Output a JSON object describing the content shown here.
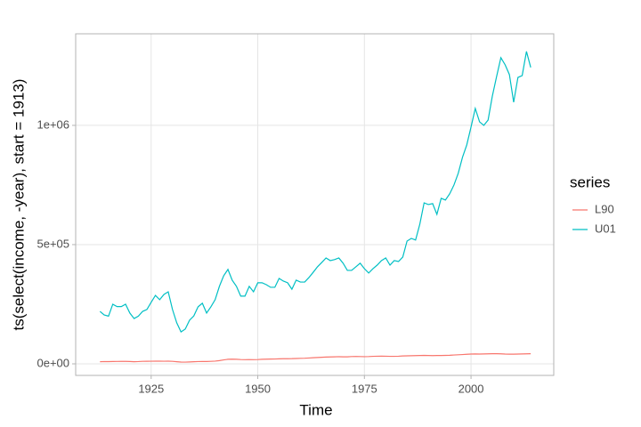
{
  "chart_data": {
    "type": "line",
    "x_label": "Time",
    "y_label": "ts(select(income, -year), start = 1913)",
    "legend_title": "series",
    "legend_position": "right",
    "grid": true,
    "x": [
      1913,
      1914,
      1915,
      1916,
      1917,
      1918,
      1919,
      1920,
      1921,
      1922,
      1923,
      1924,
      1925,
      1926,
      1927,
      1928,
      1929,
      1930,
      1931,
      1932,
      1933,
      1934,
      1935,
      1936,
      1937,
      1938,
      1939,
      1940,
      1941,
      1942,
      1943,
      1944,
      1945,
      1946,
      1947,
      1948,
      1949,
      1950,
      1951,
      1952,
      1953,
      1954,
      1955,
      1956,
      1957,
      1958,
      1959,
      1960,
      1961,
      1962,
      1963,
      1964,
      1965,
      1966,
      1967,
      1968,
      1969,
      1970,
      1971,
      1972,
      1973,
      1974,
      1975,
      1976,
      1977,
      1978,
      1979,
      1980,
      1981,
      1982,
      1983,
      1984,
      1985,
      1986,
      1987,
      1988,
      1989,
      1990,
      1991,
      1992,
      1993,
      1994,
      1995,
      1996,
      1997,
      1998,
      1999,
      2000,
      2001,
      2002,
      2003,
      2004,
      2005,
      2006,
      2007,
      2008,
      2009,
      2010,
      2011,
      2012,
      2013,
      2014
    ],
    "series": [
      {
        "name": "L90",
        "color": "#f8766d",
        "values": [
          9000,
          9500,
          9200,
          9800,
          10000,
          10500,
          10300,
          9800,
          9000,
          9500,
          10500,
          10800,
          11000,
          11200,
          11500,
          11000,
          11200,
          10500,
          9000,
          7500,
          7200,
          8000,
          8800,
          9500,
          10000,
          9800,
          10500,
          11500,
          13500,
          16500,
          19000,
          19500,
          19000,
          18000,
          17500,
          17800,
          17500,
          18000,
          19000,
          19500,
          20000,
          20200,
          21000,
          21500,
          21500,
          21800,
          22500,
          23000,
          23500,
          24500,
          25500,
          26500,
          27500,
          28500,
          29000,
          29500,
          30000,
          29500,
          29500,
          30500,
          31000,
          30500,
          30000,
          30500,
          31500,
          32000,
          32500,
          32000,
          31500,
          31500,
          32000,
          33000,
          33500,
          34000,
          34500,
          35000,
          35500,
          35000,
          34500,
          35000,
          35000,
          35500,
          36000,
          37000,
          38000,
          39000,
          40000,
          41000,
          41500,
          41000,
          41500,
          42000,
          42500,
          42500,
          42000,
          41000,
          40500,
          40500,
          41000,
          41500,
          42000,
          42500
        ]
      },
      {
        "name": "U01",
        "color": "#00bfc4",
        "values": [
          220000,
          205000,
          200000,
          250000,
          240000,
          240000,
          250000,
          213000,
          190000,
          200000,
          220000,
          228000,
          258000,
          287000,
          269000,
          291000,
          302000,
          228000,
          172000,
          134000,
          146000,
          183000,
          201000,
          239000,
          254000,
          213000,
          239000,
          269000,
          325000,
          369000,
          396000,
          351000,
          325000,
          284000,
          284000,
          325000,
          302000,
          340000,
          340000,
          332000,
          321000,
          321000,
          358000,
          347000,
          340000,
          313000,
          351000,
          343000,
          343000,
          362000,
          384000,
          407000,
          425000,
          444000,
          433000,
          437000,
          444000,
          422000,
          392000,
          392000,
          407000,
          422000,
          399000,
          381000,
          399000,
          414000,
          433000,
          444000,
          414000,
          433000,
          429000,
          448000,
          515000,
          526000,
          519000,
          586000,
          675000,
          668000,
          672000,
          627000,
          694000,
          687000,
          713000,
          750000,
          799000,
          866000,
          918000,
          993000,
          1071000,
          1015000,
          1000000,
          1022000,
          1123000,
          1205000,
          1284000,
          1254000,
          1213000,
          1097000,
          1201000,
          1209000,
          1310000,
          1243000
        ]
      }
    ],
    "xlim": [
      1907.3,
      2019.4
    ],
    "xticks": [
      1925,
      1950,
      1975,
      2000
    ],
    "ylim": [
      -48500,
      1384000
    ],
    "yticks": [
      {
        "value": 0,
        "label": "0e+00"
      },
      {
        "value": 500000,
        "label": "5e+05"
      },
      {
        "value": 1000000,
        "label": "1e+06"
      }
    ]
  }
}
